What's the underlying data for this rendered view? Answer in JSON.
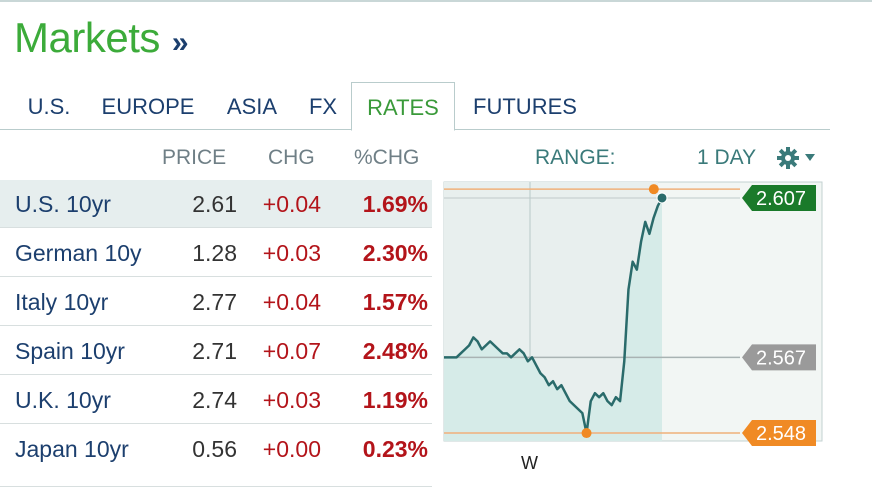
{
  "header": {
    "title": "Markets",
    "chevron": "»"
  },
  "tabs": [
    {
      "label": "U.S.",
      "active": false
    },
    {
      "label": "EUROPE",
      "active": false
    },
    {
      "label": "ASIA",
      "active": false
    },
    {
      "label": "FX",
      "active": false
    },
    {
      "label": "RATES",
      "active": true
    },
    {
      "label": "FUTURES",
      "active": false
    }
  ],
  "table": {
    "headers": {
      "price": "PRICE",
      "chg": "CHG",
      "pct": "%CHG"
    },
    "rows": [
      {
        "name": "U.S. 10yr",
        "price": "2.61",
        "chg": "+0.04",
        "pct": "1.69%",
        "selected": true
      },
      {
        "name": "German 10y",
        "price": "1.28",
        "chg": "+0.03",
        "pct": "2.30%",
        "selected": false
      },
      {
        "name": "Italy 10yr",
        "price": "2.77",
        "chg": "+0.04",
        "pct": "1.57%",
        "selected": false
      },
      {
        "name": "Spain 10yr",
        "price": "2.71",
        "chg": "+0.07",
        "pct": "2.48%",
        "selected": false
      },
      {
        "name": "U.K. 10yr",
        "price": "2.74",
        "chg": "+0.03",
        "pct": "1.19%",
        "selected": false
      },
      {
        "name": "Japan 10yr",
        "price": "0.56",
        "chg": "+0.00",
        "pct": "0.23%",
        "selected": false
      }
    ]
  },
  "range": {
    "label": "RANGE:",
    "period": "1 DAY",
    "settings_icon": "gear-icon"
  },
  "colors": {
    "brand_green": "#3cab3a",
    "navy": "#1c3f6e",
    "change_red": "#b3141a",
    "line": "#2a6b6b",
    "area": "#d6ebe8",
    "high_marker": "#f08a24",
    "current_badge": "#1a7a2a",
    "open_badge": "#9a9a9a",
    "low_badge": "#f08a24"
  },
  "chart_data": {
    "type": "line",
    "x_tick_labels": [
      "W"
    ],
    "badges": {
      "current": "2.607",
      "open": "2.567",
      "low": "2.548"
    },
    "ylim": [
      2.546,
      2.611
    ],
    "series": [
      {
        "values": [
          2.567,
          2.567,
          2.567,
          2.567,
          2.568,
          2.569,
          2.57,
          2.572,
          2.571,
          2.569,
          2.57,
          2.571,
          2.57,
          2.569,
          2.568,
          2.568,
          2.567,
          2.568,
          2.569,
          2.568,
          2.566,
          2.567,
          2.565,
          2.563,
          2.562,
          2.56,
          2.561,
          2.559,
          2.56,
          2.558,
          2.556,
          2.555,
          2.554,
          2.553,
          2.548,
          2.556,
          2.558,
          2.557,
          2.558,
          2.556,
          2.555,
          2.557,
          2.556,
          2.566,
          2.584,
          2.591,
          2.589,
          2.596,
          2.601,
          2.598,
          2.602,
          2.605,
          2.607
        ]
      }
    ]
  }
}
